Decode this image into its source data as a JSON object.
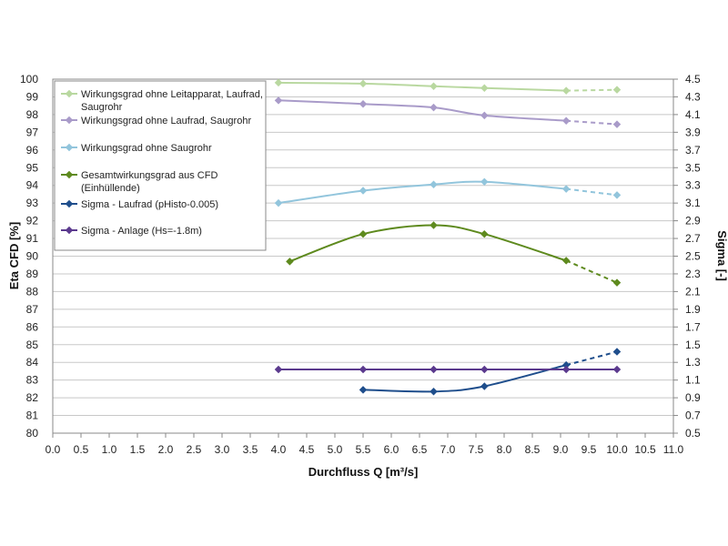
{
  "chart_data": {
    "type": "line",
    "xlabel": "Durchfluss Q [m³/s]",
    "ylabel": "Eta CFD [%]",
    "y2label": "Sigma [-]",
    "xlim": [
      0,
      11
    ],
    "ylim": [
      80,
      100
    ],
    "y2lim": [
      0.5,
      4.5
    ],
    "x_ticks": [
      "0.0",
      "0.5",
      "1.0",
      "1.5",
      "2.0",
      "2.5",
      "3.0",
      "3.5",
      "4.0",
      "4.5",
      "5.0",
      "5.5",
      "6.0",
      "6.5",
      "7.0",
      "7.5",
      "8.0",
      "8.5",
      "9.0",
      "9.5",
      "10.0",
      "10.5",
      "11.0"
    ],
    "y_ticks": [
      "80",
      "81",
      "82",
      "83",
      "84",
      "85",
      "86",
      "87",
      "88",
      "89",
      "90",
      "91",
      "92",
      "93",
      "94",
      "95",
      "96",
      "97",
      "98",
      "99",
      "100"
    ],
    "y2_ticks": [
      "0.5",
      "0.7",
      "0.9",
      "1.1",
      "1.3",
      "1.5",
      "1.7",
      "1.9",
      "2.1",
      "2.3",
      "2.5",
      "2.7",
      "2.9",
      "3.1",
      "3.3",
      "3.5",
      "3.7",
      "3.9",
      "4.1",
      "4.3",
      "4.5"
    ],
    "grid": true,
    "legend": "top-left",
    "series": [
      {
        "name": "Wirkungsgrad ohne Leitapparat, Laufrad, Saugrohr",
        "axis": "left",
        "color": "#b9d8a0",
        "x": [
          4.0,
          5.5,
          6.75,
          7.65,
          9.1,
          10.0
        ],
        "y": [
          99.8,
          99.75,
          99.6,
          99.5,
          99.35,
          99.4
        ],
        "dashed_from_index": 4
      },
      {
        "name": "Wirkungsgrad ohne Laufrad, Saugrohr",
        "axis": "left",
        "color": "#a99bc9",
        "x": [
          4.0,
          5.5,
          6.75,
          7.65,
          9.1,
          10.0
        ],
        "y": [
          98.8,
          98.6,
          98.4,
          97.95,
          97.65,
          97.45
        ],
        "dashed_from_index": 4
      },
      {
        "name": "Wirkungsgrad ohne Saugrohr",
        "axis": "left",
        "color": "#92c5dc",
        "x": [
          4.0,
          5.5,
          6.75,
          7.65,
          9.1,
          10.0
        ],
        "y": [
          93.0,
          93.7,
          94.05,
          94.2,
          93.8,
          93.45
        ],
        "dashed_from_index": 4
      },
      {
        "name": "Gesamtwirkungsgrad aus CFD (Einhüllende)",
        "axis": "left",
        "color": "#5e8a1e",
        "x": [
          4.2,
          5.5,
          6.75,
          7.65,
          9.1,
          10.0
        ],
        "y": [
          89.7,
          91.25,
          91.75,
          91.25,
          89.75,
          88.5
        ],
        "dashed_from_index": 4
      },
      {
        "name": "Sigma - Laufrad (pHisto-0.005)",
        "axis": "right",
        "color": "#1f4e8c",
        "x": [
          5.5,
          6.75,
          7.65,
          9.1,
          10.0
        ],
        "y": [
          0.99,
          0.97,
          1.03,
          1.27,
          1.42
        ],
        "dashed_from_index": 3
      },
      {
        "name": "Sigma - Anlage (Hs=-1.8m)",
        "axis": "right",
        "color": "#5b3a8e",
        "x": [
          4.0,
          5.5,
          6.75,
          7.65,
          9.1,
          10.0
        ],
        "y": [
          1.22,
          1.22,
          1.22,
          1.22,
          1.22,
          1.22
        ],
        "dashed_from_index": null
      }
    ]
  },
  "legend_lines": [
    [
      "Wirkungsgrad ohne Leitapparat, Laufrad,",
      "Saugrohr"
    ],
    [
      "Wirkungsgrad ohne Laufrad, Saugrohr"
    ],
    [
      "Wirkungsgrad ohne Saugrohr"
    ],
    [
      "Gesamtwirkungsgrad aus CFD",
      "(Einhüllende)"
    ],
    [
      "Sigma - Laufrad (pHisto-0.005)"
    ],
    [
      "Sigma - Anlage (Hs=-1.8m)"
    ]
  ]
}
